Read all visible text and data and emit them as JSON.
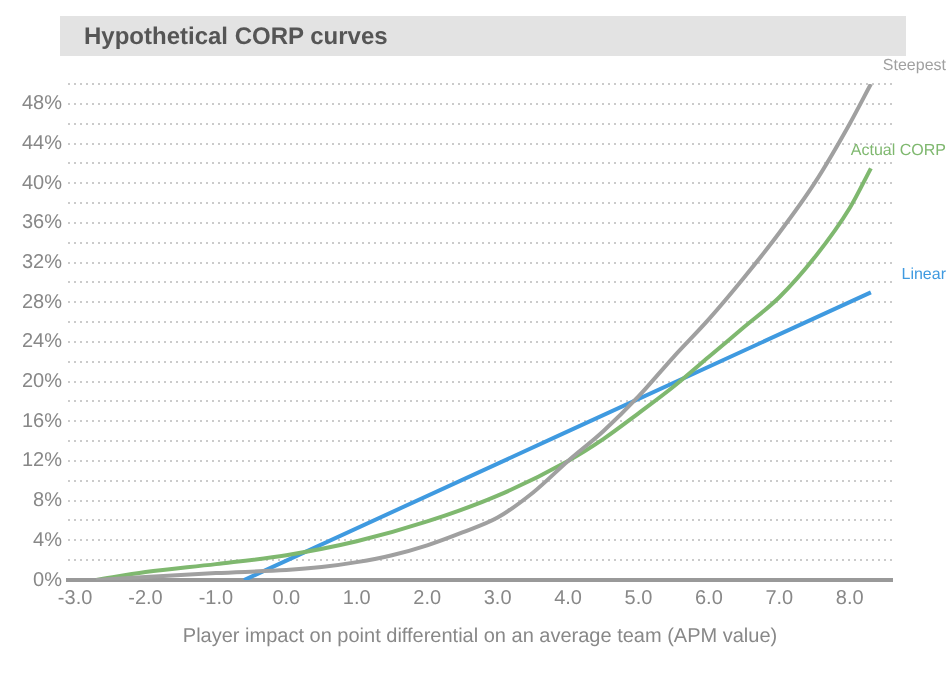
{
  "chart_data": {
    "type": "line",
    "title": "Hypothetical CORP curves",
    "xlabel": "Player impact on point differential on an average team (APM value)",
    "series": [
      {
        "name": "Steepest",
        "color": "#a0a0a0",
        "x": [
          -2.7,
          -2,
          -1,
          0,
          0.5,
          1,
          1.5,
          2,
          2.5,
          3,
          3.5,
          4,
          4.5,
          5,
          5.5,
          6,
          6.5,
          7,
          7.5,
          8,
          8.3
        ],
        "values": [
          0,
          0.3,
          0.7,
          1,
          1.3,
          1.8,
          2.5,
          3.5,
          4.8,
          6.3,
          8.8,
          12,
          15,
          18.5,
          22.5,
          26.3,
          30.5,
          35,
          40,
          46,
          50
        ]
      },
      {
        "name": "Actual CORP",
        "color": "#7fb86f",
        "x": [
          -2.7,
          -2,
          -1,
          0,
          1,
          2,
          3,
          4,
          4.5,
          5,
          5.5,
          6,
          6.5,
          7,
          7.5,
          8,
          8.3
        ],
        "values": [
          0,
          0.8,
          1.6,
          2.5,
          3.9,
          5.9,
          8.5,
          12,
          14.2,
          16.8,
          19.5,
          22.5,
          25.5,
          28.5,
          32.5,
          37.5,
          41.5
        ]
      },
      {
        "name": "Linear",
        "color": "#3f9ae0",
        "x": [
          -0.6,
          8.3
        ],
        "values": [
          0,
          29
        ]
      }
    ],
    "xlim": [
      -3.1,
      8.6
    ],
    "xticks": [
      {
        "value": -3,
        "label": "-3.0"
      },
      {
        "value": -2,
        "label": "-2.0"
      },
      {
        "value": -1,
        "label": "-1.0"
      },
      {
        "value": 0,
        "label": "0.0"
      },
      {
        "value": 1,
        "label": "1.0"
      },
      {
        "value": 2,
        "label": "2.0"
      },
      {
        "value": 3,
        "label": "3.0"
      },
      {
        "value": 4,
        "label": "4.0"
      },
      {
        "value": 5,
        "label": "5.0"
      },
      {
        "value": 6,
        "label": "6.0"
      },
      {
        "value": 7,
        "label": "7.0"
      },
      {
        "value": 8,
        "label": "8.0"
      }
    ],
    "ylim": [
      0,
      50
    ],
    "yticks": [
      {
        "value": 0,
        "label": "0%"
      },
      {
        "value": 2,
        "label": null
      },
      {
        "value": 4,
        "label": "4%"
      },
      {
        "value": 6,
        "label": null
      },
      {
        "value": 8,
        "label": "8%"
      },
      {
        "value": 10,
        "label": null
      },
      {
        "value": 12,
        "label": "12%"
      },
      {
        "value": 14,
        "label": null
      },
      {
        "value": 16,
        "label": "16%"
      },
      {
        "value": 18,
        "label": null
      },
      {
        "value": 20,
        "label": "20%"
      },
      {
        "value": 22,
        "label": null
      },
      {
        "value": 24,
        "label": "24%"
      },
      {
        "value": 26,
        "label": null
      },
      {
        "value": 28,
        "label": "28%"
      },
      {
        "value": 30,
        "label": null
      },
      {
        "value": 32,
        "label": "32%"
      },
      {
        "value": 34,
        "label": null
      },
      {
        "value": 36,
        "label": "36%"
      },
      {
        "value": 38,
        "label": null
      },
      {
        "value": 40,
        "label": "40%"
      },
      {
        "value": 42,
        "label": null
      },
      {
        "value": 44,
        "label": "44%"
      },
      {
        "value": 46,
        "label": null
      },
      {
        "value": 48,
        "label": "48%"
      },
      {
        "value": 50,
        "label": null
      }
    ],
    "grid": "y",
    "legend": false,
    "marker": "none",
    "line_style": "solid"
  }
}
